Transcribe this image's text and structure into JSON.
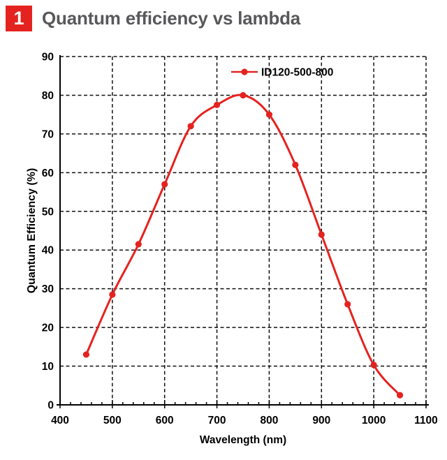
{
  "header": {
    "badge": "1",
    "title": "Quantum efficiency vs lambda",
    "badge_color": "#e42320",
    "title_color": "#58585a"
  },
  "chart_data": {
    "type": "line",
    "series": [
      {
        "name": "ID120-500-800",
        "color": "#e42320",
        "x": [
          450,
          500,
          550,
          600,
          650,
          700,
          750,
          800,
          850,
          900,
          950,
          1000,
          1050
        ],
        "y": [
          13,
          28.5,
          41.5,
          57,
          72,
          77.5,
          80,
          75,
          62,
          44,
          26,
          10.3,
          2.5
        ]
      }
    ],
    "xlabel": "Wavelength (nm)",
    "ylabel": "Quantum Efficiency (%)",
    "xlim": [
      400,
      1100
    ],
    "ylim": [
      0,
      90
    ],
    "x_major_step": 100,
    "x_minor_step": 20,
    "y_major_step": 10,
    "x_ticks": [
      400,
      500,
      600,
      700,
      800,
      900,
      1000,
      1100
    ],
    "y_ticks": [
      0,
      10,
      20,
      30,
      40,
      50,
      60,
      70,
      80,
      90
    ],
    "grid": "dashed",
    "grid_color": "#111111",
    "axis_color": "#000000",
    "legend_position": "top-center",
    "marker": "circle",
    "smooth": true
  }
}
